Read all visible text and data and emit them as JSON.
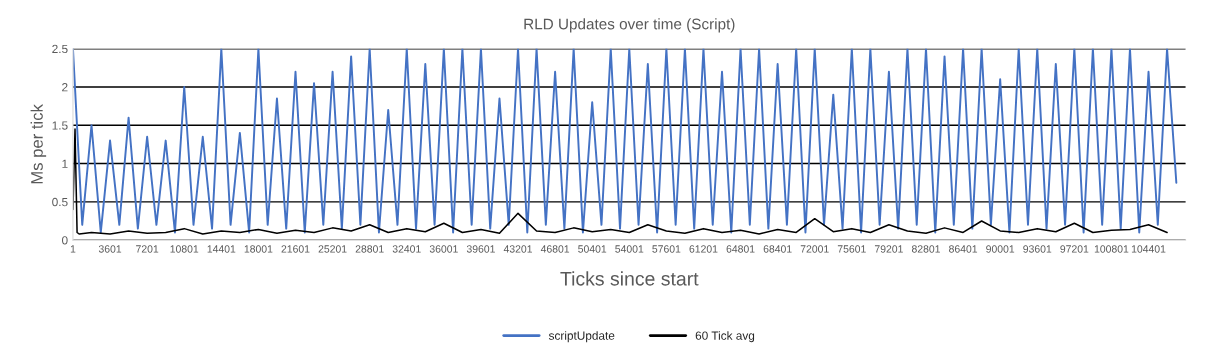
{
  "chart_data": {
    "type": "line",
    "title": "RLD Updates over time (Script)",
    "xlabel": "Ticks since start",
    "ylabel": "Ms per tick",
    "xlim": [
      1,
      108000
    ],
    "ylim": [
      0,
      2.5
    ],
    "xticks": [
      1,
      3601,
      7201,
      10801,
      14401,
      18001,
      21601,
      25201,
      28801,
      32401,
      36001,
      39601,
      43201,
      46801,
      50401,
      54001,
      57601,
      61201,
      64801,
      68401,
      72001,
      75601,
      79201,
      82801,
      86401,
      90001,
      93601,
      97201,
      100801,
      104401
    ],
    "yticks": [
      0,
      0.5,
      1,
      1.5,
      2,
      2.5
    ],
    "grid": "y",
    "legend": "bottom",
    "series": [
      {
        "name": "scriptUpdate",
        "color": "#4472c4",
        "x": [
          1,
          901,
          1801,
          2701,
          3601,
          4501,
          5401,
          6301,
          7201,
          8101,
          9001,
          9901,
          10801,
          11701,
          12601,
          13501,
          14401,
          15301,
          16201,
          17101,
          18001,
          18901,
          19801,
          20701,
          21601,
          22501,
          23401,
          24301,
          25201,
          26101,
          27001,
          27901,
          28801,
          29701,
          30601,
          31501,
          32401,
          33301,
          34201,
          35101,
          36001,
          36901,
          37801,
          38701,
          39601,
          40501,
          41401,
          42301,
          43201,
          44101,
          45001,
          45901,
          46801,
          47701,
          48601,
          49501,
          50401,
          51301,
          52201,
          53101,
          54001,
          54901,
          55801,
          56701,
          57601,
          58501,
          59401,
          60301,
          61201,
          62101,
          63001,
          63901,
          64801,
          65701,
          66601,
          67501,
          68401,
          69301,
          70201,
          71101,
          72001,
          72901,
          73801,
          74701,
          75601,
          76501,
          77401,
          78301,
          79201,
          80101,
          81001,
          81901,
          82801,
          83701,
          84601,
          85501,
          86401,
          87301,
          88201,
          89101,
          90001,
          90901,
          91801,
          92701,
          93601,
          94501,
          95401,
          96301,
          97201,
          98101,
          99001,
          99901,
          100801,
          101701,
          102601,
          103501,
          104401,
          105301,
          106201,
          107101
        ],
        "values": [
          2.5,
          0.2,
          1.5,
          0.1,
          1.3,
          0.2,
          1.6,
          0.15,
          1.35,
          0.2,
          1.3,
          0.1,
          2.0,
          0.2,
          1.35,
          0.15,
          2.5,
          0.2,
          1.4,
          0.1,
          2.5,
          0.2,
          1.85,
          0.15,
          2.2,
          0.1,
          2.05,
          0.2,
          2.2,
          0.15,
          2.4,
          0.2,
          2.5,
          0.1,
          1.7,
          0.2,
          2.5,
          0.15,
          2.3,
          0.2,
          2.5,
          0.1,
          2.5,
          0.2,
          2.5,
          0.15,
          1.85,
          0.2,
          2.5,
          0.1,
          2.5,
          0.2,
          2.2,
          0.15,
          2.5,
          0.1,
          1.8,
          0.2,
          2.5,
          0.15,
          2.5,
          0.2,
          2.3,
          0.1,
          2.5,
          0.2,
          2.5,
          0.15,
          2.5,
          0.2,
          2.2,
          0.1,
          2.5,
          0.2,
          2.5,
          0.15,
          2.3,
          0.2,
          2.5,
          0.1,
          2.5,
          0.2,
          1.9,
          0.15,
          2.5,
          0.1,
          2.5,
          0.2,
          2.2,
          0.15,
          2.5,
          0.2,
          2.5,
          0.1,
          2.4,
          0.2,
          2.5,
          0.15,
          2.5,
          0.2,
          2.1,
          0.1,
          2.5,
          0.2,
          2.5,
          0.15,
          2.3,
          0.2,
          2.5,
          0.1,
          2.5,
          0.2,
          2.5,
          0.15,
          2.5,
          0.1,
          2.2,
          0.2,
          2.5,
          0.75
        ]
      },
      {
        "name": "60 Tick avg",
        "color": "#000000",
        "x": [
          1,
          201,
          401,
          601,
          1801,
          3601,
          5401,
          7201,
          9001,
          10801,
          12601,
          14401,
          16201,
          18001,
          19801,
          21601,
          23401,
          25201,
          27001,
          28801,
          30601,
          32401,
          34201,
          36001,
          37801,
          39601,
          41401,
          43201,
          45001,
          46801,
          48601,
          50401,
          52201,
          54001,
          55801,
          57601,
          59401,
          61201,
          63001,
          64801,
          66601,
          68401,
          70201,
          72001,
          73801,
          75601,
          77401,
          79201,
          81001,
          82801,
          84601,
          86401,
          88201,
          90001,
          91801,
          93601,
          95401,
          97201,
          99001,
          100801,
          102601,
          104401,
          106201
        ],
        "values": [
          0.4,
          1.45,
          0.1,
          0.08,
          0.1,
          0.08,
          0.12,
          0.09,
          0.1,
          0.15,
          0.08,
          0.12,
          0.1,
          0.14,
          0.09,
          0.13,
          0.1,
          0.16,
          0.12,
          0.2,
          0.1,
          0.15,
          0.11,
          0.22,
          0.1,
          0.14,
          0.09,
          0.35,
          0.12,
          0.1,
          0.16,
          0.11,
          0.14,
          0.1,
          0.2,
          0.12,
          0.09,
          0.15,
          0.1,
          0.13,
          0.08,
          0.14,
          0.1,
          0.28,
          0.11,
          0.15,
          0.1,
          0.2,
          0.12,
          0.09,
          0.16,
          0.1,
          0.25,
          0.12,
          0.1,
          0.15,
          0.11,
          0.22,
          0.1,
          0.13,
          0.14,
          0.2,
          0.1
        ]
      }
    ]
  }
}
